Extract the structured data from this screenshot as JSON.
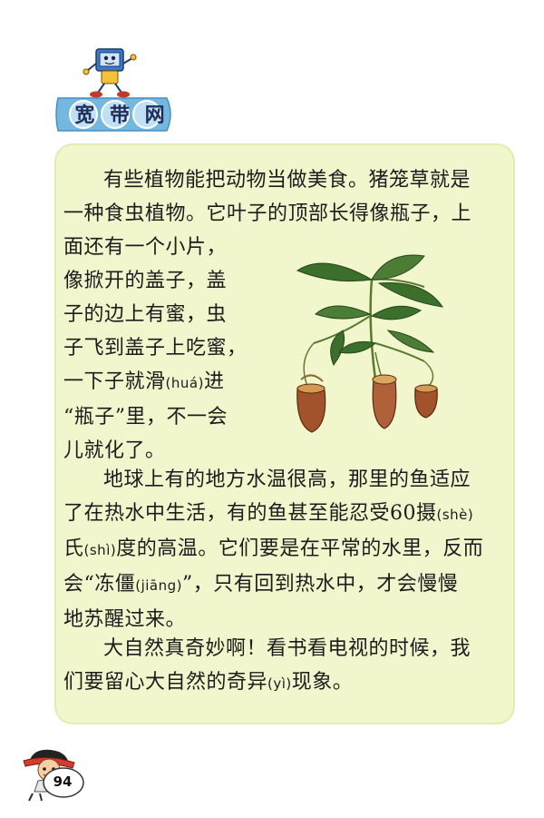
{
  "header": {
    "section_chars": [
      "宽",
      "带",
      "网"
    ],
    "mascot_icon": "computer-mascot-icon"
  },
  "colors": {
    "panel_bg": "#f1f6cc",
    "tag_blue": "#74b7df",
    "tag_text": "#1f2d5a",
    "leaf_green": "#3c6e2c",
    "pitcher_brown": "#a2532c"
  },
  "text": {
    "para1": {
      "line1": "有些植物能把动物当做美食。猪笼草就是",
      "line2": "一种食虫植物。它叶子的顶部长得像瓶子，上",
      "line3": "面还有一个小片，",
      "line4": "像掀开的盖子，盖",
      "line5": "子的边上有蜜，虫",
      "line6": "子飞到盖子上吃蜜，",
      "line7_a": "一下子就滑",
      "line7_py": "(huá)",
      "line7_b": "进",
      "line8": "“瓶子”里，不一会",
      "line9": "儿就化了。"
    },
    "para2": {
      "line1": "地球上有的地方水温很高，那里的鱼适应",
      "line2_a": "了在热水中生活，有的鱼甚至能忍受60摄",
      "line2_py": "(shè)",
      "line3_a": "氏",
      "line3_py1": "(shì)",
      "line3_b": "度的高温。它们要是在平常的水里，反而",
      "line4_a": "会“冻僵",
      "line4_py": "(jiāng)",
      "line4_b": "”，只有回到热水中，才会慢慢",
      "line5": "地苏醒过来。"
    },
    "para3": {
      "line1": "大自然真奇妙啊！看书看电视的时候，我",
      "line2_a": "们要留心大自然的奇异",
      "line2_py": "(yì)",
      "line2_b": "现象。"
    }
  },
  "illustration": {
    "icon": "pitcher-plant-icon"
  },
  "footer": {
    "page_number": "94",
    "mascot_icon": "boy-mascot-icon"
  }
}
